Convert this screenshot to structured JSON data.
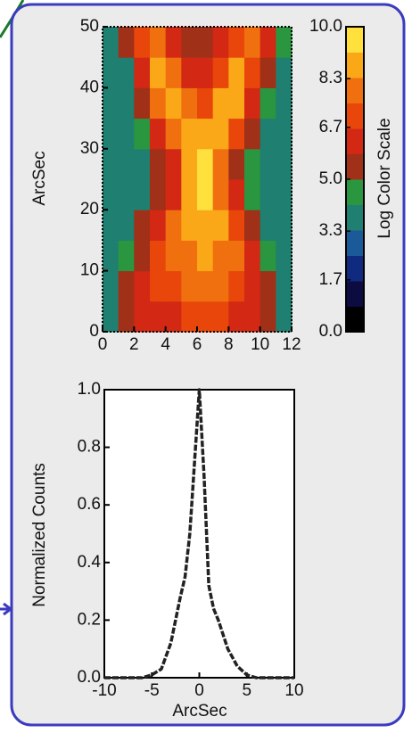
{
  "chart_data": [
    {
      "type": "heatmap",
      "y_label": "ArcSec",
      "colorbar_label": "Log Color Scale",
      "x": [
        0.5,
        1.5,
        2.5,
        3.5,
        4.5,
        5.5,
        6.5,
        7.5,
        8.5,
        9.5,
        10.5,
        11.5
      ],
      "y": [
        2.5,
        7.5,
        12.5,
        17.5,
        22.5,
        27.5,
        32.5,
        37.5,
        42.5,
        47.5
      ],
      "z": [
        [
          4,
          5,
          6,
          6.5,
          6.5,
          7,
          7,
          7,
          6.5,
          6,
          5,
          4
        ],
        [
          4,
          5,
          6,
          7,
          7,
          7.5,
          8,
          7.5,
          7,
          6.5,
          5,
          4
        ],
        [
          3.5,
          4.5,
          5.5,
          7,
          7.5,
          8,
          8.5,
          8,
          7.5,
          6,
          4.5,
          3.5
        ],
        [
          3.5,
          4,
          5,
          6,
          7.5,
          8.5,
          9,
          8.5,
          7,
          5.5,
          4,
          3.5
        ],
        [
          3.5,
          3.5,
          4,
          5,
          6.5,
          9,
          9.5,
          8,
          6,
          4.5,
          3.5,
          3.5
        ],
        [
          3.5,
          3.5,
          4,
          5,
          6.5,
          9,
          9.5,
          8,
          5.5,
          4.5,
          3.5,
          3.5
        ],
        [
          3.5,
          3.5,
          4.5,
          6,
          8,
          9,
          9,
          9,
          7,
          5,
          4,
          3.5
        ],
        [
          3.5,
          4,
          5,
          7.5,
          9,
          7.5,
          7,
          8.5,
          8.5,
          6,
          4.5,
          3.5
        ],
        [
          3.5,
          4,
          6,
          8.5,
          7.5,
          6,
          6,
          7,
          8.5,
          7,
          5,
          4
        ],
        [
          4,
          5,
          7,
          7.5,
          6,
          5,
          5,
          6,
          7,
          7.5,
          6,
          4.5
        ]
      ],
      "xlim": [
        0,
        12
      ],
      "xticks": [
        0,
        2,
        4,
        6,
        8,
        10,
        12
      ],
      "ylim": [
        0,
        50
      ],
      "yticks": [
        0,
        10,
        20,
        30,
        40,
        50
      ],
      "zlim": [
        0,
        10
      ],
      "zticks": [
        {
          "value": 0,
          "label": "0.0"
        },
        1.7,
        3.3,
        {
          "value": 5,
          "label": "5.0"
        },
        6.7,
        8.3,
        {
          "value": 10,
          "label": "10.0"
        }
      ],
      "colormap": [
        "#000000",
        "#0c0c40",
        "#102a80",
        "#1a5a98",
        "#1f7f70",
        "#2a9640",
        "#a03018",
        "#d22814",
        "#e8460a",
        "#f07010",
        "#fba818",
        "#ffe03c"
      ]
    },
    {
      "type": "line",
      "x_label": "ArcSec",
      "y_label": "Normalized Counts",
      "x": [
        -10,
        -6,
        -5,
        -4,
        -3,
        -2,
        -1.5,
        -1,
        -0.5,
        0,
        0.5,
        1,
        1.5,
        2,
        3,
        4,
        5,
        6,
        10
      ],
      "values": [
        0,
        0,
        0.01,
        0.03,
        0.12,
        0.28,
        0.35,
        0.5,
        0.75,
        1.0,
        0.7,
        0.32,
        0.24,
        0.2,
        0.1,
        0.04,
        0.01,
        0,
        0
      ],
      "color": "#222222",
      "xlim": [
        -10,
        10
      ],
      "xticks": [
        -10,
        -5,
        0,
        5,
        10
      ],
      "ylim": [
        0,
        1
      ],
      "yticks": [
        {
          "value": 0,
          "label": "0.0"
        },
        0.2,
        0.4,
        0.6,
        0.8,
        {
          "value": 1,
          "label": "1.0"
        }
      ]
    }
  ]
}
